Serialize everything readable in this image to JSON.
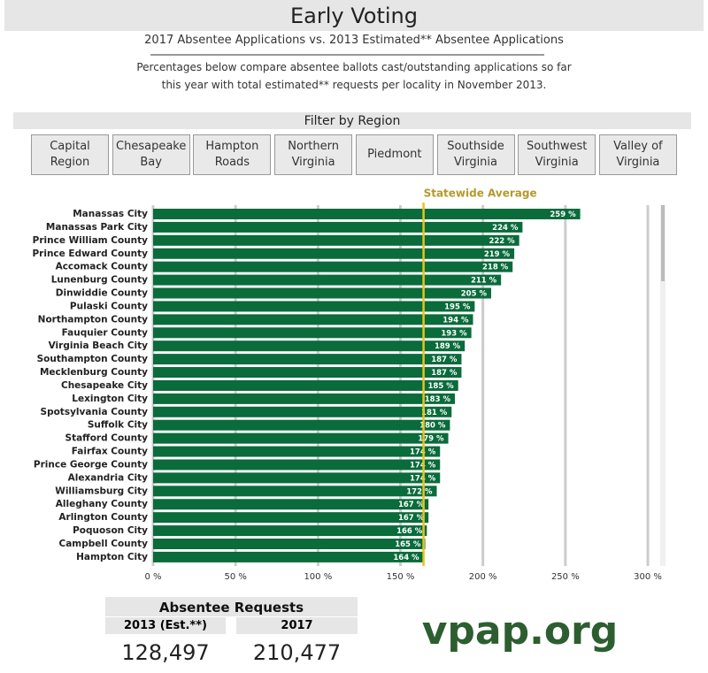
{
  "header": {
    "title": "Early Voting",
    "subtitle": "2017 Absentee Applications vs. 2013 Estimated** Absentee Applications",
    "description": [
      "Percentages below compare absentee ballots cast/outstanding applications so far",
      "this year with total estimated** requests per locality in November 2013."
    ]
  },
  "filter": {
    "title": "Filter by Region",
    "buttons": [
      "Capital Region",
      "Chesapeake Bay",
      "Hampton Roads",
      "Northern Virginia",
      "Piedmont",
      "Southside Virginia",
      "Southwest Virginia",
      "Valley of Virginia"
    ]
  },
  "chart_data": {
    "type": "hbar",
    "color": "#0a6b3b",
    "categories": [
      "Manassas City",
      "Manassas Park City",
      "Prince William County",
      "Prince Edward County",
      "Accomack County",
      "Lunenburg County",
      "Dinwiddie County",
      "Pulaski County",
      "Northampton County",
      "Fauquier County",
      "Virginia Beach City",
      "Southampton County",
      "Mecklenburg County",
      "Chesapeake City",
      "Lexington City",
      "Spotsylvania County",
      "Suffolk City",
      "Stafford County",
      "Fairfax County",
      "Prince George County",
      "Alexandria City",
      "Williamsburg City",
      "Alleghany County",
      "Arlington County",
      "Poquoson City",
      "Campbell County",
      "Hampton City"
    ],
    "values": [
      259,
      224,
      222,
      219,
      218,
      211,
      205,
      195,
      194,
      193,
      189,
      187,
      187,
      185,
      183,
      181,
      180,
      179,
      174,
      174,
      174,
      172,
      167,
      167,
      166,
      165,
      164
    ],
    "value_labels": [
      "259 %",
      "224 %",
      "222 %",
      "219 %",
      "218 %",
      "211 %",
      "205 %",
      "195 %",
      "194 %",
      "193 %",
      "189 %",
      "187 %",
      "187 %",
      "185 %",
      "183 %",
      "181 %",
      "180 %",
      "179 %",
      "174 %",
      "174 %",
      "174 %",
      "172 %",
      "167 %",
      "167 %",
      "166 %",
      "165 %",
      "164 %"
    ],
    "xlim": [
      0,
      300
    ],
    "xticks": [
      {
        "value": 0,
        "label": "0 %"
      },
      {
        "value": 50,
        "label": "50 %"
      },
      {
        "value": 100,
        "label": "100 %"
      },
      {
        "value": 150,
        "label": "150 %"
      },
      {
        "value": 200,
        "label": "200 %"
      },
      {
        "value": 250,
        "label": "250 %"
      },
      {
        "value": 300,
        "label": "300 %"
      }
    ],
    "grid": true,
    "average": {
      "label": "Statewide Average",
      "value": 164,
      "color": "#e6c619"
    }
  },
  "requests": {
    "title": "Absentee Requests",
    "columns": [
      "2013 (Est.**)",
      "2017"
    ],
    "values": [
      "128,497",
      "210,477"
    ]
  },
  "logo": "vpap.org"
}
